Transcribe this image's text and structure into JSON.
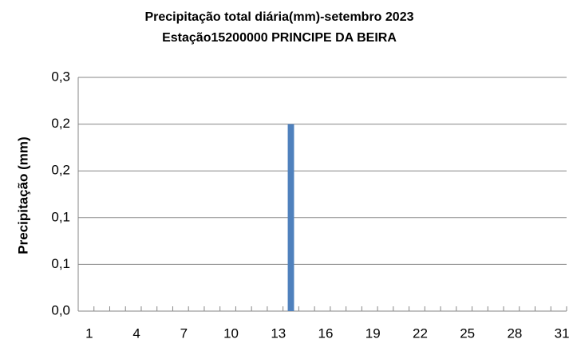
{
  "chart_data": {
    "type": "bar",
    "title": "Precipitação total diária(mm)-setembro 2023",
    "subtitle": "Estação15200000 PRINCIPE DA BEIRA",
    "y_label": "Precipitação (mm)",
    "categories": [
      "1",
      null,
      null,
      "4",
      null,
      null,
      "7",
      null,
      null,
      "10",
      null,
      null,
      "13",
      null,
      null,
      "16",
      null,
      null,
      "19",
      null,
      null,
      "22",
      null,
      null,
      "25",
      null,
      null,
      "28",
      null,
      null,
      "31"
    ],
    "values": [
      0,
      0,
      0,
      0,
      0,
      0,
      0,
      0,
      0,
      0,
      0,
      0,
      0,
      0.2,
      0,
      0,
      0,
      0,
      0,
      0,
      0,
      0,
      0,
      0,
      0,
      0,
      0,
      0,
      0,
      0,
      0
    ],
    "color": "#4f81bd",
    "ylim": [
      0,
      0.25
    ],
    "yticks": [
      {
        "value": 0,
        "label": "0,0"
      },
      {
        "value": 0.05,
        "label": "0,1"
      },
      {
        "value": 0.1,
        "label": "0,1"
      },
      {
        "value": 0.15,
        "label": "0,2"
      },
      {
        "value": 0.2,
        "label": "0,2"
      },
      {
        "value": 0.25,
        "label": "0,3"
      }
    ],
    "grid": true
  }
}
